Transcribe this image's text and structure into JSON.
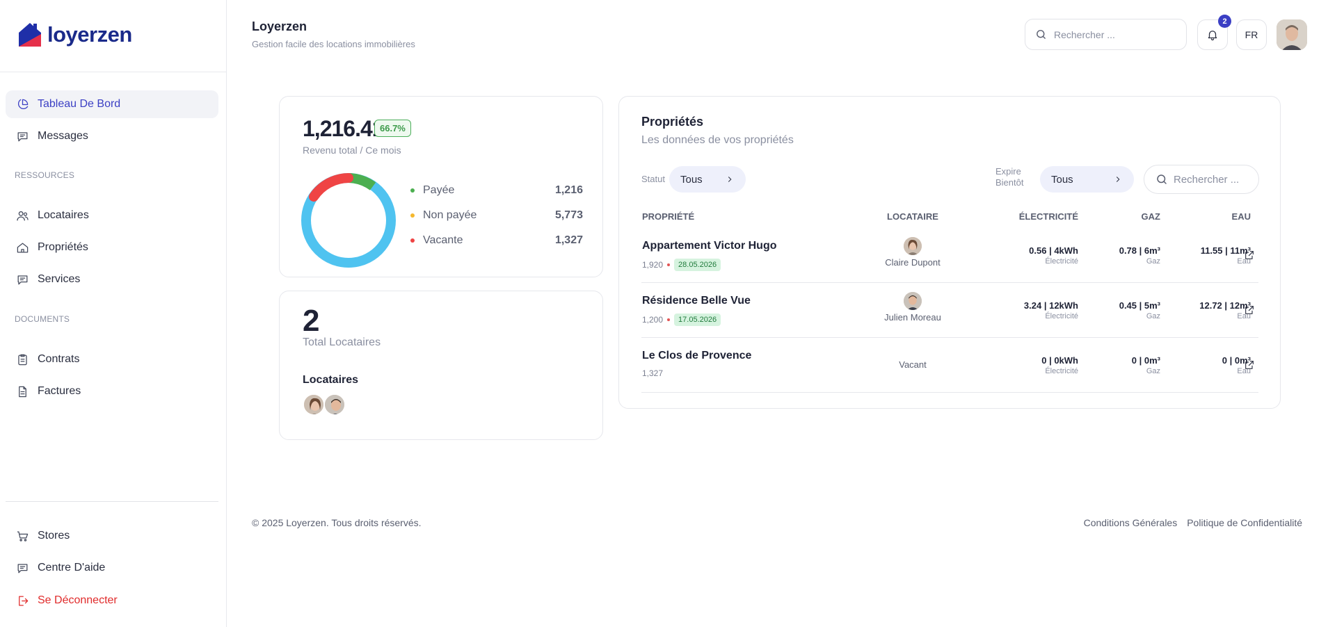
{
  "brand": {
    "name": "loyerzen",
    "logo_colors": [
      "#1f2fa8",
      "#e5304a"
    ]
  },
  "sidebar": {
    "items": [
      {
        "label": "Tableau De Bord",
        "icon": "pie-chart-icon",
        "active": true
      },
      {
        "label": "Messages",
        "icon": "message-icon"
      },
      {
        "label": "Locataires",
        "icon": "users-icon"
      },
      {
        "label": "Propriétés",
        "icon": "home-icon"
      },
      {
        "label": "Services",
        "icon": "message-icon"
      },
      {
        "label": "Contrats",
        "icon": "clipboard-icon"
      },
      {
        "label": "Factures",
        "icon": "file-icon"
      }
    ],
    "sections": {
      "resources": "RESSOURCES",
      "documents": "DOCUMENTS"
    },
    "bottom": [
      {
        "label": "Stores",
        "icon": "cart-icon"
      },
      {
        "label": "Centre D'aide",
        "icon": "message-icon"
      },
      {
        "label": "Se Déconnecter",
        "icon": "logout-icon"
      }
    ]
  },
  "header": {
    "title": "Loyerzen",
    "subtitle": "Gestion facile des locations immobilières",
    "search_placeholder": "Rechercher ...",
    "notification_count": "2",
    "language": "FR"
  },
  "revenue": {
    "value": "1,216.41",
    "badge": "66.7%",
    "label": "Revenu total / Ce mois",
    "legend": [
      {
        "label": "Payée",
        "value": "1,216",
        "color": "#4caf50"
      },
      {
        "label": "Non payée",
        "value": "5,773",
        "color": "#f5b82e"
      },
      {
        "label": "Vacante",
        "value": "1,327",
        "color": "#ef4444"
      }
    ],
    "donut_color_main": "#4fc3f0"
  },
  "tenants": {
    "count": "2",
    "label": "Total Locataires",
    "heading": "Locataires"
  },
  "properties": {
    "title": "Propriétés",
    "subtitle": "Les données de vos propriétés",
    "filter_status_label": "Statut",
    "filter_status_value": "Tous",
    "filter_expire_label_1": "Expire",
    "filter_expire_label_2": "Bientôt",
    "filter_expire_value": "Tous",
    "search_placeholder": "Rechercher ...",
    "columns": [
      "PROPRIÉTÉ",
      "LOCATAIRE",
      "ÉLECTRICITÉ",
      "GAZ",
      "EAU"
    ],
    "rows": [
      {
        "name": "Appartement Victor Hugo",
        "amount": "1,920",
        "date": "28.05.2026",
        "tenant": "Claire Dupont",
        "elec": "0.56 | 4kWh",
        "elec_label": "Électricité",
        "gaz": "0.78 | 6m³",
        "gaz_label": "Gaz",
        "eau": "11.55 | 11m³",
        "eau_label": "Eau"
      },
      {
        "name": "Résidence Belle Vue",
        "amount": "1,200",
        "date": "17.05.2026",
        "tenant": "Julien Moreau",
        "elec": "3.24 | 12kWh",
        "elec_label": "Électricité",
        "gaz": "0.45 | 5m³",
        "gaz_label": "Gaz",
        "eau": "12.72 | 12m³",
        "eau_label": "Eau"
      },
      {
        "name": "Le Clos de Provence",
        "amount": "1,327",
        "tenant": "Vacant",
        "elec": "0 | 0kWh",
        "elec_label": "Électricité",
        "gaz": "0 | 0m³",
        "gaz_label": "Gaz",
        "eau": "0 | 0m³",
        "eau_label": "Eau"
      }
    ]
  },
  "footer": {
    "copyright": "© 2025 Loyerzen. Tous droits réservés.",
    "links": [
      "Conditions Générales",
      "Politique de Confidentialité"
    ]
  }
}
